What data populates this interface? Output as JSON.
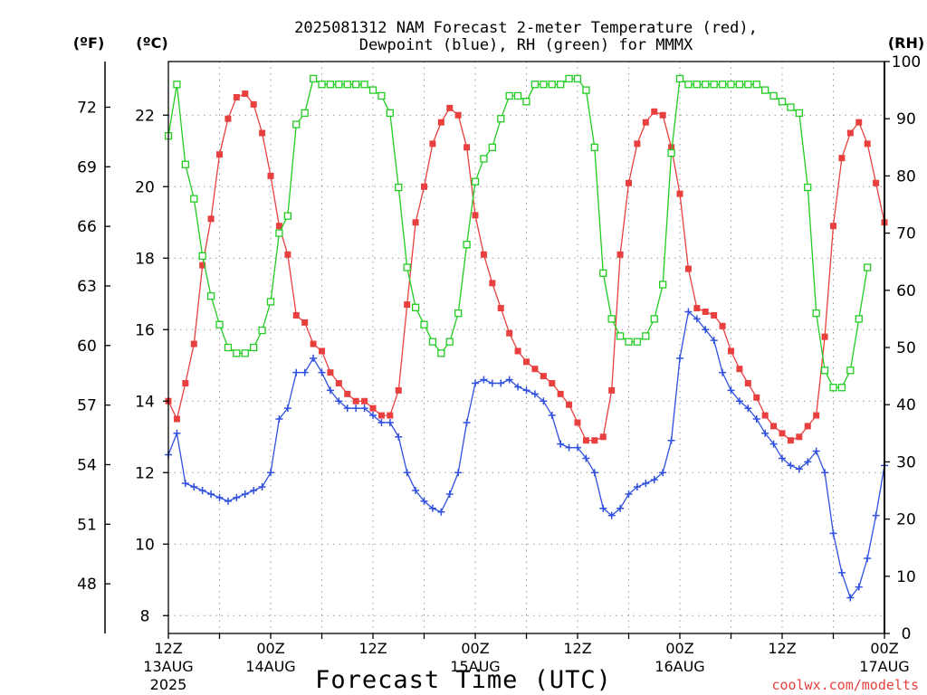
{
  "title_line1": "2025081312 NAM Forecast 2-meter Temperature (red),",
  "title_line2": "Dewpoint (blue), RH (green) for MMMX",
  "axis_label_f": "(ºF)",
  "axis_label_c": "(ºC)",
  "axis_label_rh": "(RH)",
  "xlabel": "Forecast Time (UTC)",
  "credit": "coolwx.com/modelts",
  "colors": {
    "temperature": "#e8403f",
    "dewpoint": "#3050e0",
    "rh": "#22cc22",
    "grid": "#999999",
    "credit": "#e8403f"
  },
  "chart_data": {
    "type": "line",
    "x_unit": "forecast hour",
    "xlim": [
      0,
      84
    ],
    "x_ticks": [
      {
        "x": 0,
        "line1": "12Z",
        "line2": "13AUG",
        "line3": "2025"
      },
      {
        "x": 12,
        "line1": "00Z",
        "line2": "14AUG",
        "line3": ""
      },
      {
        "x": 24,
        "line1": "12Z",
        "line2": "",
        "line3": ""
      },
      {
        "x": 36,
        "line1": "00Z",
        "line2": "15AUG",
        "line3": ""
      },
      {
        "x": 48,
        "line1": "12Z",
        "line2": "",
        "line3": ""
      },
      {
        "x": 60,
        "line1": "00Z",
        "line2": "16AUG",
        "line3": ""
      },
      {
        "x": 72,
        "line1": "12Z",
        "line2": "",
        "line3": ""
      },
      {
        "x": 84,
        "line1": "00Z",
        "line2": "17AUG",
        "line3": ""
      }
    ],
    "y_left_c": {
      "ylim": [
        7.5,
        23.5
      ],
      "ticks": [
        8,
        10,
        12,
        14,
        16,
        18,
        20,
        22
      ]
    },
    "y_left_f": {
      "ticks": [
        48,
        51,
        54,
        57,
        60,
        63,
        66,
        69,
        72
      ]
    },
    "y_right_rh": {
      "ylim": [
        0,
        100
      ],
      "ticks": [
        0,
        10,
        20,
        30,
        40,
        50,
        60,
        70,
        80,
        90,
        100
      ]
    },
    "grid": true,
    "series": [
      {
        "name": "Temperature",
        "axis": "c",
        "marker": "filled-square",
        "values": [
          [
            0,
            14.0
          ],
          [
            1,
            13.5
          ],
          [
            2,
            14.5
          ],
          [
            3,
            15.6
          ],
          [
            4,
            17.8
          ],
          [
            5,
            19.1
          ],
          [
            6,
            20.9
          ],
          [
            7,
            21.9
          ],
          [
            8,
            22.5
          ],
          [
            9,
            22.6
          ],
          [
            10,
            22.3
          ],
          [
            11,
            21.5
          ],
          [
            12,
            20.3
          ],
          [
            13,
            18.9
          ],
          [
            14,
            18.1
          ],
          [
            15,
            16.4
          ],
          [
            16,
            16.2
          ],
          [
            17,
            15.6
          ],
          [
            18,
            15.4
          ],
          [
            19,
            14.8
          ],
          [
            20,
            14.5
          ],
          [
            21,
            14.2
          ],
          [
            22,
            14.0
          ],
          [
            23,
            14.0
          ],
          [
            24,
            13.8
          ],
          [
            25,
            13.6
          ],
          [
            26,
            13.6
          ],
          [
            27,
            14.3
          ],
          [
            28,
            16.7
          ],
          [
            29,
            19.0
          ],
          [
            30,
            20.0
          ],
          [
            31,
            21.2
          ],
          [
            32,
            21.8
          ],
          [
            33,
            22.2
          ],
          [
            34,
            22.0
          ],
          [
            35,
            21.1
          ],
          [
            36,
            19.2
          ],
          [
            37,
            18.1
          ],
          [
            38,
            17.3
          ],
          [
            39,
            16.6
          ],
          [
            40,
            15.9
          ],
          [
            41,
            15.4
          ],
          [
            42,
            15.1
          ],
          [
            43,
            14.9
          ],
          [
            44,
            14.7
          ],
          [
            45,
            14.5
          ],
          [
            46,
            14.2
          ],
          [
            47,
            13.9
          ],
          [
            48,
            13.4
          ],
          [
            49,
            12.9
          ],
          [
            50,
            12.9
          ],
          [
            51,
            13.0
          ],
          [
            52,
            14.3
          ],
          [
            53,
            18.1
          ],
          [
            54,
            20.1
          ],
          [
            55,
            21.2
          ],
          [
            56,
            21.8
          ],
          [
            57,
            22.1
          ],
          [
            58,
            22.0
          ],
          [
            59,
            21.1
          ],
          [
            60,
            19.8
          ],
          [
            61,
            17.7
          ],
          [
            62,
            16.6
          ],
          [
            63,
            16.5
          ],
          [
            64,
            16.4
          ],
          [
            65,
            16.1
          ],
          [
            66,
            15.4
          ],
          [
            67,
            14.9
          ],
          [
            68,
            14.5
          ],
          [
            69,
            14.1
          ],
          [
            70,
            13.6
          ],
          [
            71,
            13.3
          ],
          [
            72,
            13.1
          ],
          [
            73,
            12.9
          ],
          [
            74,
            13.0
          ],
          [
            75,
            13.3
          ],
          [
            76,
            13.6
          ],
          [
            77,
            15.8
          ],
          [
            78,
            18.9
          ],
          [
            79,
            20.8
          ],
          [
            80,
            21.5
          ],
          [
            81,
            21.8
          ],
          [
            82,
            21.2
          ],
          [
            83,
            20.1
          ],
          [
            84,
            19.0
          ]
        ]
      },
      {
        "name": "Dewpoint",
        "axis": "c",
        "marker": "plus",
        "values": [
          [
            0,
            12.5
          ],
          [
            1,
            13.1
          ],
          [
            2,
            11.7
          ],
          [
            3,
            11.6
          ],
          [
            4,
            11.5
          ],
          [
            5,
            11.4
          ],
          [
            6,
            11.3
          ],
          [
            7,
            11.2
          ],
          [
            8,
            11.3
          ],
          [
            9,
            11.4
          ],
          [
            10,
            11.5
          ],
          [
            11,
            11.6
          ],
          [
            12,
            12.0
          ],
          [
            13,
            13.5
          ],
          [
            14,
            13.8
          ],
          [
            15,
            14.8
          ],
          [
            16,
            14.8
          ],
          [
            17,
            15.2
          ],
          [
            18,
            14.8
          ],
          [
            19,
            14.3
          ],
          [
            20,
            14.0
          ],
          [
            21,
            13.8
          ],
          [
            22,
            13.8
          ],
          [
            23,
            13.8
          ],
          [
            24,
            13.6
          ],
          [
            25,
            13.4
          ],
          [
            26,
            13.4
          ],
          [
            27,
            13.0
          ],
          [
            28,
            12.0
          ],
          [
            29,
            11.5
          ],
          [
            30,
            11.2
          ],
          [
            31,
            11.0
          ],
          [
            32,
            10.9
          ],
          [
            33,
            11.4
          ],
          [
            34,
            12.0
          ],
          [
            35,
            13.4
          ],
          [
            36,
            14.5
          ],
          [
            37,
            14.6
          ],
          [
            38,
            14.5
          ],
          [
            39,
            14.5
          ],
          [
            40,
            14.6
          ],
          [
            41,
            14.4
          ],
          [
            42,
            14.3
          ],
          [
            43,
            14.2
          ],
          [
            44,
            14.0
          ],
          [
            45,
            13.6
          ],
          [
            46,
            12.8
          ],
          [
            47,
            12.7
          ],
          [
            48,
            12.7
          ],
          [
            49,
            12.4
          ],
          [
            50,
            12.0
          ],
          [
            51,
            11.0
          ],
          [
            52,
            10.8
          ],
          [
            53,
            11.0
          ],
          [
            54,
            11.4
          ],
          [
            55,
            11.6
          ],
          [
            56,
            11.7
          ],
          [
            57,
            11.8
          ],
          [
            58,
            12.0
          ],
          [
            59,
            12.9
          ],
          [
            60,
            15.2
          ],
          [
            61,
            16.5
          ],
          [
            62,
            16.3
          ],
          [
            63,
            16.0
          ],
          [
            64,
            15.7
          ],
          [
            65,
            14.8
          ],
          [
            66,
            14.3
          ],
          [
            67,
            14.0
          ],
          [
            68,
            13.8
          ],
          [
            69,
            13.5
          ],
          [
            70,
            13.1
          ],
          [
            71,
            12.8
          ],
          [
            72,
            12.4
          ],
          [
            73,
            12.2
          ],
          [
            74,
            12.1
          ],
          [
            75,
            12.3
          ],
          [
            76,
            12.6
          ],
          [
            77,
            12.0
          ],
          [
            78,
            10.3
          ],
          [
            79,
            9.2
          ],
          [
            80,
            8.5
          ],
          [
            81,
            8.8
          ],
          [
            82,
            9.6
          ],
          [
            83,
            10.8
          ],
          [
            84,
            12.2
          ]
        ]
      },
      {
        "name": "RH",
        "axis": "rh",
        "marker": "open-square",
        "values": [
          [
            0,
            87
          ],
          [
            1,
            96
          ],
          [
            2,
            82
          ],
          [
            3,
            76
          ],
          [
            4,
            66
          ],
          [
            5,
            59
          ],
          [
            6,
            54
          ],
          [
            7,
            50
          ],
          [
            8,
            49
          ],
          [
            9,
            49
          ],
          [
            10,
            50
          ],
          [
            11,
            53
          ],
          [
            12,
            58
          ],
          [
            13,
            70
          ],
          [
            14,
            73
          ],
          [
            15,
            89
          ],
          [
            16,
            91
          ],
          [
            17,
            97
          ],
          [
            18,
            96
          ],
          [
            19,
            96
          ],
          [
            20,
            96
          ],
          [
            21,
            96
          ],
          [
            22,
            96
          ],
          [
            23,
            96
          ],
          [
            24,
            95
          ],
          [
            25,
            94
          ],
          [
            26,
            91
          ],
          [
            27,
            78
          ],
          [
            28,
            64
          ],
          [
            29,
            57
          ],
          [
            30,
            54
          ],
          [
            31,
            51
          ],
          [
            32,
            49
          ],
          [
            33,
            51
          ],
          [
            34,
            56
          ],
          [
            35,
            68
          ],
          [
            36,
            79
          ],
          [
            37,
            83
          ],
          [
            38,
            85
          ],
          [
            39,
            90
          ],
          [
            40,
            94
          ],
          [
            41,
            94
          ],
          [
            42,
            93
          ],
          [
            43,
            96
          ],
          [
            44,
            96
          ],
          [
            45,
            96
          ],
          [
            46,
            96
          ],
          [
            47,
            97
          ],
          [
            48,
            97
          ],
          [
            49,
            95
          ],
          [
            50,
            85
          ],
          [
            51,
            63
          ],
          [
            52,
            55
          ],
          [
            53,
            52
          ],
          [
            54,
            51
          ],
          [
            55,
            51
          ],
          [
            56,
            52
          ],
          [
            57,
            55
          ],
          [
            58,
            61
          ],
          [
            59,
            84
          ],
          [
            60,
            97
          ],
          [
            61,
            96
          ],
          [
            62,
            96
          ],
          [
            63,
            96
          ],
          [
            64,
            96
          ],
          [
            65,
            96
          ],
          [
            66,
            96
          ],
          [
            67,
            96
          ],
          [
            68,
            96
          ],
          [
            69,
            96
          ],
          [
            70,
            95
          ],
          [
            71,
            94
          ],
          [
            72,
            93
          ],
          [
            73,
            92
          ],
          [
            74,
            91
          ],
          [
            75,
            78
          ],
          [
            76,
            56
          ],
          [
            77,
            46
          ],
          [
            78,
            43
          ],
          [
            79,
            43
          ],
          [
            80,
            46
          ],
          [
            81,
            55
          ],
          [
            82,
            64
          ]
        ]
      }
    ]
  }
}
